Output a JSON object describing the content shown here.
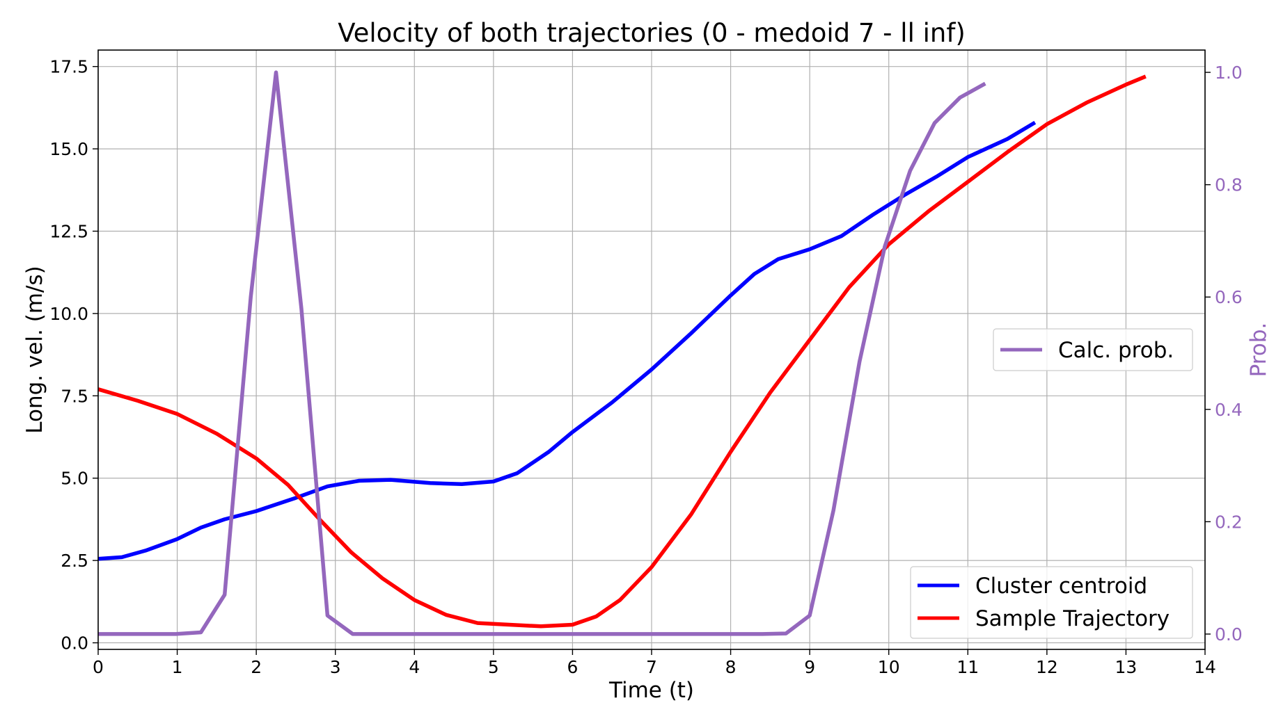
{
  "chart_data": {
    "type": "line",
    "title": "Velocity of both trajectories (0 - medoid 7 - ll inf)",
    "xlabel": "Time (t)",
    "ylabel": "Long. vel. (m/s)",
    "y2label": "Prob.",
    "xlim": [
      0,
      14
    ],
    "ylim": [
      -0.2,
      18.0
    ],
    "y2lim": [
      -0.0273,
      1.0397
    ],
    "xticks": [
      "0",
      "1",
      "2",
      "3",
      "4",
      "5",
      "6",
      "7",
      "8",
      "9",
      "10",
      "11",
      "12",
      "13",
      "14"
    ],
    "xtick_values": [
      0,
      1,
      2,
      3,
      4,
      5,
      6,
      7,
      8,
      9,
      10,
      11,
      12,
      13,
      14
    ],
    "yticks": [
      "0.0",
      "2.5",
      "5.0",
      "7.5",
      "10.0",
      "12.5",
      "15.0",
      "17.5"
    ],
    "ytick_values": [
      0,
      2.5,
      5,
      7.5,
      10,
      12.5,
      15,
      17.5
    ],
    "y2ticks": [
      "0.0",
      "0.2",
      "0.4",
      "0.6",
      "0.8",
      "1.0"
    ],
    "y2tick_values": [
      0,
      0.2,
      0.4,
      0.6,
      0.8,
      1.0
    ],
    "grid": true,
    "colors": {
      "centroid": "#0000ff",
      "sample": "#ff0000",
      "prob": "#9467bd"
    },
    "series": [
      {
        "name": "Cluster centroid",
        "axis": "left",
        "x": [
          0,
          0.3,
          0.6,
          1.0,
          1.3,
          1.6,
          2.0,
          2.5,
          2.9,
          3.3,
          3.7,
          4.2,
          4.6,
          5.0,
          5.3,
          5.7,
          6.0,
          6.5,
          7.0,
          7.5,
          8.0,
          8.3,
          8.6,
          9.0,
          9.4,
          9.8,
          10.2,
          10.6,
          11.0,
          11.5,
          11.85
        ],
        "values": [
          2.55,
          2.6,
          2.8,
          3.15,
          3.5,
          3.75,
          4.0,
          4.4,
          4.75,
          4.92,
          4.95,
          4.85,
          4.82,
          4.9,
          5.15,
          5.8,
          6.4,
          7.3,
          8.3,
          9.4,
          10.55,
          11.2,
          11.65,
          11.95,
          12.35,
          13.0,
          13.6,
          14.15,
          14.75,
          15.3,
          15.8
        ]
      },
      {
        "name": "Sample Trajectory",
        "axis": "left",
        "x": [
          0,
          0.5,
          1.0,
          1.5,
          2.0,
          2.4,
          2.8,
          3.2,
          3.6,
          4.0,
          4.4,
          4.8,
          5.2,
          5.6,
          6.0,
          6.3,
          6.6,
          7.0,
          7.5,
          8.0,
          8.5,
          9.0,
          9.5,
          10.0,
          10.5,
          11.0,
          11.5,
          12.0,
          12.5,
          13.0,
          13.25
        ],
        "values": [
          7.7,
          7.35,
          6.95,
          6.35,
          5.6,
          4.8,
          3.75,
          2.75,
          1.95,
          1.3,
          0.85,
          0.6,
          0.55,
          0.5,
          0.55,
          0.8,
          1.3,
          2.3,
          3.9,
          5.8,
          7.6,
          9.2,
          10.8,
          12.1,
          13.1,
          14.0,
          14.9,
          15.75,
          16.4,
          16.95,
          17.2
        ]
      },
      {
        "name": "Calc. prob.",
        "axis": "right",
        "x": [
          0,
          0.33,
          0.65,
          0.98,
          1.3,
          1.6,
          1.93,
          2.25,
          2.57,
          2.9,
          3.22,
          3.55,
          3.87,
          4.2,
          4.5,
          4.83,
          5.15,
          5.48,
          5.8,
          6.13,
          6.45,
          6.77,
          7.1,
          7.42,
          7.75,
          8.07,
          8.4,
          8.7,
          9.0,
          9.3,
          9.63,
          9.95,
          10.27,
          10.58,
          10.9,
          11.22
        ],
        "values": [
          0.0,
          0.0,
          0.0,
          0.0,
          0.003,
          0.07,
          0.6,
          1.0,
          0.58,
          0.033,
          0.0,
          0.0,
          0.0,
          0.0,
          0.0,
          0.0,
          0.0,
          0.0,
          0.0,
          0.0,
          0.0,
          0.0,
          0.0,
          0.0,
          0.0,
          0.0,
          0.0,
          0.001,
          0.033,
          0.22,
          0.485,
          0.69,
          0.825,
          0.91,
          0.955,
          0.98
        ]
      }
    ],
    "legends": [
      {
        "placement": "center-right",
        "entries": [
          "Calc. prob."
        ]
      },
      {
        "placement": "lower-right",
        "entries": [
          "Cluster centroid",
          "Sample Trajectory"
        ]
      }
    ]
  }
}
